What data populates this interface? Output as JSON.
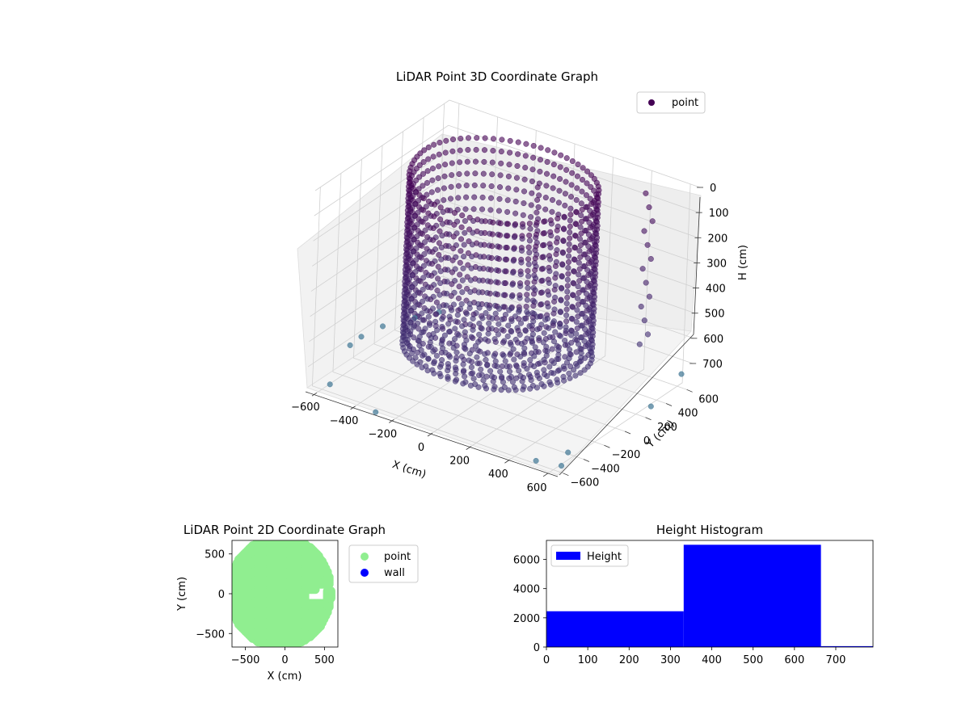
{
  "colors": {
    "scatter3d_high": "#440154",
    "scatter3d_low": "#3b528b",
    "scatter3d_outlier": "#4a7d9a",
    "point2d": "#90ee90",
    "wall2d": "#0000ff",
    "hist": "#0000ff",
    "pane": "#f2f2f2",
    "grid": "#cfcfcf"
  },
  "chart_data": [
    {
      "type": "scatter",
      "projection": "3d",
      "title": "LiDAR Point 3D Coordinate Graph",
      "xlabel": "X (cm)",
      "ylabel": "Y (cm)",
      "zlabel": "H (cm)",
      "legend": [
        "point"
      ],
      "legend_position": "top-right",
      "xticks": [
        "−600",
        "−400",
        "−200",
        "0",
        "200",
        "400",
        "600"
      ],
      "yticks": [
        "−600",
        "−400",
        "−200",
        "0",
        "200",
        "400",
        "600"
      ],
      "zticks": [
        "0",
        "100",
        "200",
        "300",
        "400",
        "500",
        "600",
        "700"
      ],
      "xlim": [
        -650,
        650
      ],
      "ylim": [
        -650,
        650
      ],
      "zlim": [
        790,
        0
      ],
      "grid": true,
      "shape": {
        "ring_radius_x": 420,
        "ring_radius_y": 470,
        "ring_center": [
          -60,
          50
        ],
        "height_range": [
          0,
          660
        ],
        "columns": 72,
        "levels": 14
      },
      "outliers": [
        {
          "x": -640,
          "y": -260,
          "h": 720
        },
        {
          "x": -620,
          "y": -190,
          "h": 700
        },
        {
          "x": -560,
          "y": -600,
          "h": 760
        },
        {
          "x": -600,
          "y": -20,
          "h": 700
        },
        {
          "x": -520,
          "y": 140,
          "h": 690
        },
        {
          "x": -480,
          "y": 300,
          "h": 700
        },
        {
          "x": 640,
          "y": 560,
          "h": 720
        },
        {
          "x": 600,
          "y": -460,
          "h": 760
        },
        {
          "x": 620,
          "y": -560,
          "h": 780
        },
        {
          "x": 520,
          "y": -620,
          "h": 770
        },
        {
          "x": 650,
          "y": 250,
          "h": 760
        },
        {
          "x": -300,
          "y": -640,
          "h": 790
        }
      ]
    },
    {
      "type": "scatter",
      "title": "LiDAR Point 2D Coordinate Graph",
      "xlabel": "X (cm)",
      "ylabel": "Y (cm)",
      "xticks": [
        "−500",
        "0",
        "500"
      ],
      "yticks": [
        "500",
        "0",
        "−500"
      ],
      "xlim": [
        -670,
        670
      ],
      "ylim": [
        -670,
        670
      ],
      "legend_position": "right",
      "series": [
        {
          "name": "point",
          "color": "#90ee90"
        },
        {
          "name": "wall",
          "color": "#0000ff"
        }
      ]
    },
    {
      "type": "bar",
      "subtype": "histogram",
      "title": "Height Histogram",
      "legend": [
        "Height"
      ],
      "legend_position": "top-left",
      "xticks": [
        "0",
        "100",
        "200",
        "300",
        "400",
        "500",
        "600",
        "700"
      ],
      "yticks": [
        "0",
        "2000",
        "4000",
        "6000"
      ],
      "xlim": [
        0,
        790
      ],
      "ylim": [
        0,
        7300
      ],
      "bins": [
        {
          "start": 0,
          "end": 332,
          "count": 2450
        },
        {
          "start": 332,
          "end": 664,
          "count": 7000
        },
        {
          "start": 664,
          "end": 790,
          "count": 60
        }
      ]
    }
  ]
}
